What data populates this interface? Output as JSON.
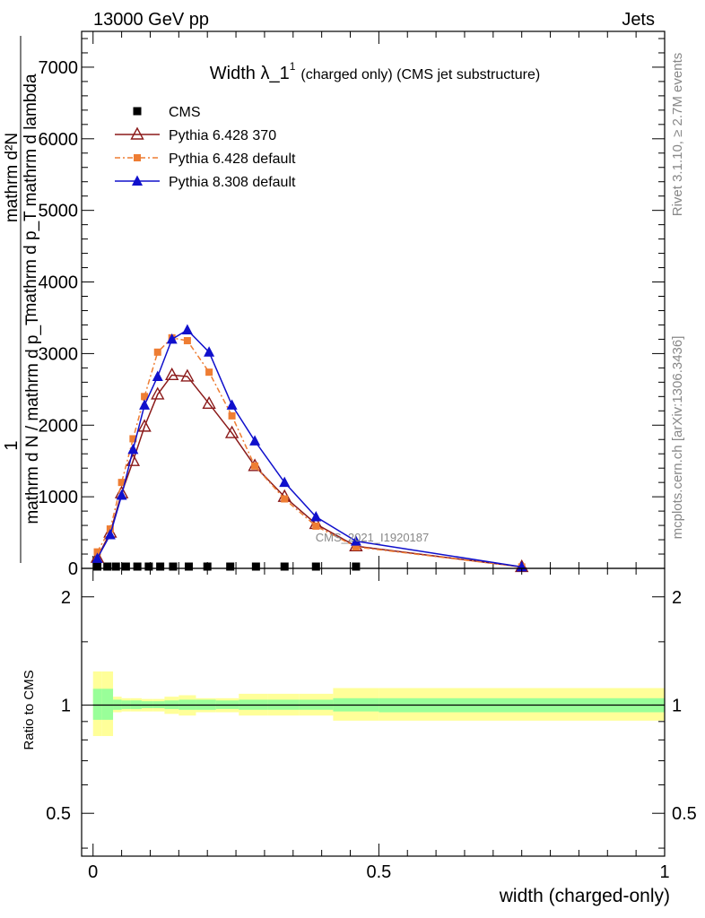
{
  "header": {
    "left": "13000 GeV pp",
    "right": "Jets"
  },
  "side_labels": {
    "rivet": "Rivet 3.1.10, ≥ 2.7M events",
    "mcplots": "mcplots.cern.ch [arXiv:1306.3436]"
  },
  "watermark": "CMS_2021_I1920187",
  "ylabel": {
    "one": "1",
    "num_upper": "mathrm d²N",
    "num_lower": "mathrm d p_T mathrm d lambda",
    "den": "mathrm d N / mathrm d p_T"
  },
  "chart_data": [
    {
      "type": "line",
      "title": "Width λ_1¹ (charged only) (CMS jet substructure)",
      "title_main": "Width λ_1",
      "title_sup": "1",
      "title_rest": "(charged only) (CMS jet substructure)",
      "xlim": [
        -0.02,
        1.0
      ],
      "ylim": [
        0,
        7500
      ],
      "yticks": [
        0,
        1000,
        2000,
        3000,
        4000,
        5000,
        6000,
        7000
      ],
      "ytick_labels": [
        "0",
        "1000",
        "2000",
        "3000",
        "4000",
        "5000",
        "6000",
        "7000"
      ],
      "legend_position": "top-left",
      "series": [
        {
          "name": "CMS",
          "marker": "square",
          "color": "#000000",
          "x": [
            0.0075,
            0.025,
            0.04,
            0.0575,
            0.0775,
            0.0975,
            0.1175,
            0.14,
            0.1675,
            0.2,
            0.24,
            0.285,
            0.335,
            0.39,
            0.46,
            0.75
          ],
          "y": [
            20,
            20,
            20,
            20,
            20,
            20,
            20,
            20,
            20,
            20,
            20,
            20,
            20,
            20,
            20,
            0
          ]
        },
        {
          "name": "Pythia 6.428 370",
          "marker": "open-triangle",
          "color": "#8b1a1a",
          "x": [
            0.0075,
            0.03,
            0.05,
            0.07,
            0.09,
            0.113,
            0.138,
            0.165,
            0.203,
            0.243,
            0.283,
            0.335,
            0.39,
            0.46,
            0.75
          ],
          "y": [
            150,
            500,
            1050,
            1500,
            1980,
            2430,
            2700,
            2680,
            2300,
            1890,
            1430,
            1000,
            620,
            310,
            20
          ]
        },
        {
          "name": "Pythia 6.428 default",
          "marker": "filled-square",
          "color": "#ee7d33",
          "x": [
            0.0075,
            0.03,
            0.05,
            0.07,
            0.09,
            0.113,
            0.138,
            0.165,
            0.203,
            0.243,
            0.283,
            0.335,
            0.39,
            0.46,
            0.75
          ],
          "y": [
            230,
            550,
            1200,
            1810,
            2400,
            3020,
            3220,
            3180,
            2740,
            2130,
            1430,
            970,
            590,
            300,
            20
          ]
        },
        {
          "name": "Pythia 8.308 default",
          "marker": "filled-triangle",
          "color": "#1010cc",
          "x": [
            0.0075,
            0.03,
            0.05,
            0.07,
            0.09,
            0.113,
            0.138,
            0.165,
            0.203,
            0.243,
            0.283,
            0.335,
            0.39,
            0.46,
            0.75
          ],
          "y": [
            140,
            470,
            1020,
            1660,
            2280,
            2680,
            3200,
            3330,
            3020,
            2280,
            1780,
            1200,
            720,
            380,
            20
          ]
        }
      ]
    },
    {
      "type": "area",
      "ylabel": "Ratio to CMS",
      "xlabel": "width (charged-only)",
      "xlim": [
        -0.02,
        1.0
      ],
      "ylim": [
        0.38,
        2.4
      ],
      "yscale": "log",
      "yticks": [
        0.5,
        1,
        2
      ],
      "ytick_labels": [
        "0.5",
        "1",
        "2"
      ],
      "xticks": [
        0,
        0.5,
        1
      ],
      "xtick_labels": [
        "0",
        "0.5",
        "1"
      ],
      "reference_line": 1,
      "band_colors": {
        "inner": "#99ff99",
        "outer": "#ffff99"
      },
      "bins": [
        0,
        0.015,
        0.035,
        0.05,
        0.065,
        0.085,
        0.105,
        0.125,
        0.15,
        0.18,
        0.215,
        0.255,
        0.305,
        0.36,
        0.42,
        0.5,
        1.0
      ],
      "inner_lo": [
        0.91,
        0.91,
        0.97,
        0.975,
        0.975,
        0.98,
        0.98,
        0.975,
        0.97,
        0.97,
        0.975,
        0.97,
        0.97,
        0.97,
        0.96,
        0.955
      ],
      "inner_hi": [
        1.11,
        1.11,
        1.035,
        1.03,
        1.03,
        1.025,
        1.025,
        1.03,
        1.035,
        1.035,
        1.03,
        1.035,
        1.035,
        1.035,
        1.045,
        1.045
      ],
      "outer_lo": [
        0.82,
        0.82,
        0.955,
        0.96,
        0.96,
        0.96,
        0.96,
        0.945,
        0.935,
        0.955,
        0.955,
        0.935,
        0.935,
        0.935,
        0.905,
        0.905
      ],
      "outer_hi": [
        1.24,
        1.24,
        1.055,
        1.045,
        1.045,
        1.04,
        1.04,
        1.055,
        1.065,
        1.045,
        1.045,
        1.075,
        1.075,
        1.075,
        1.115,
        1.115
      ]
    }
  ]
}
